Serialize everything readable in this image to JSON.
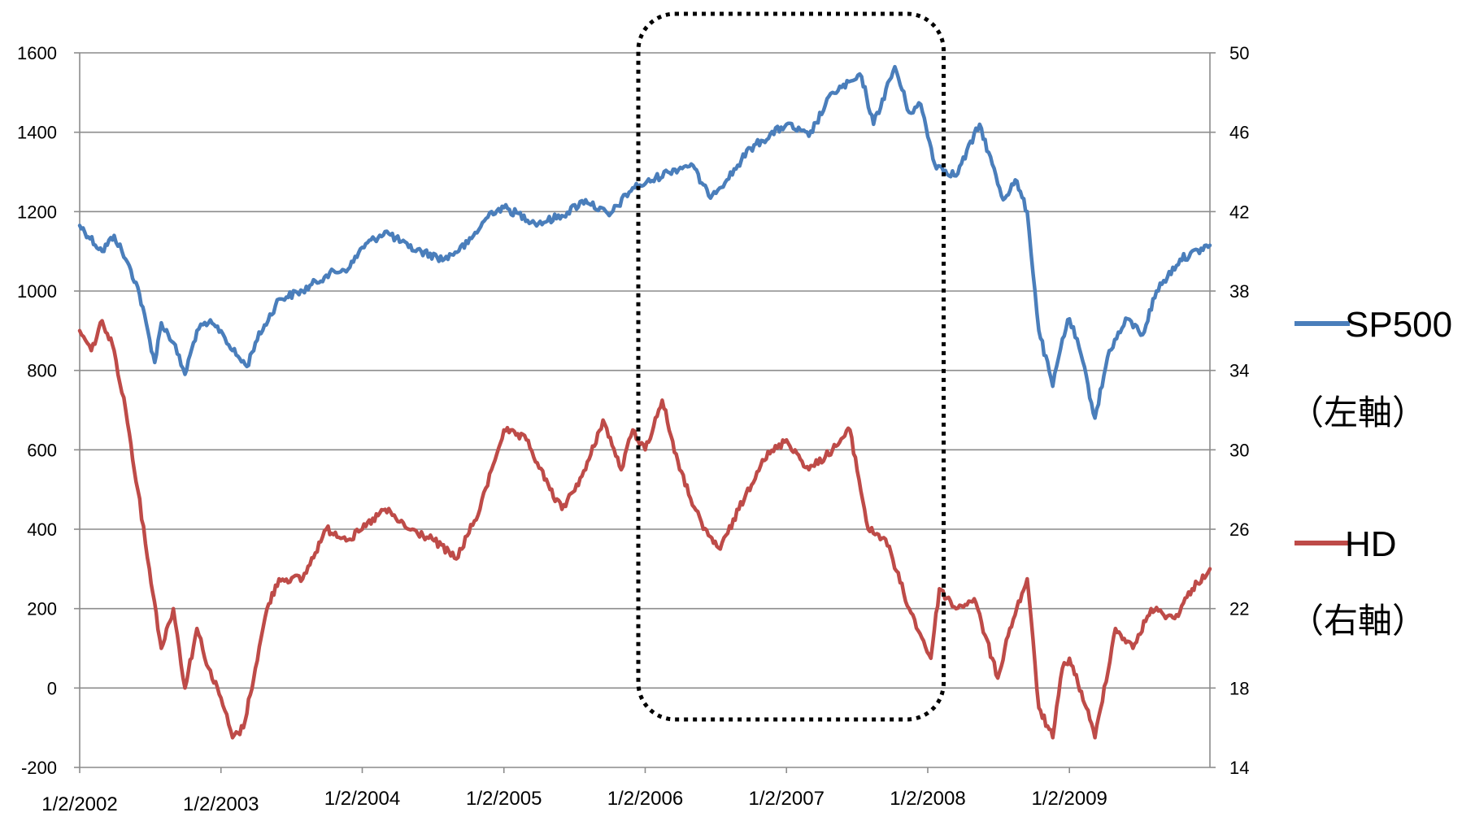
{
  "chart_data": {
    "type": "line",
    "left_axis": {
      "ylim": [
        -200,
        1600
      ],
      "ticks": [
        "1600",
        "1400",
        "1200",
        "1000",
        "800",
        "600",
        "400",
        "200",
        "0",
        "-200"
      ]
    },
    "right_axis": {
      "ylim": [
        14,
        50
      ],
      "ticks": [
        "50",
        "46",
        "42",
        "38",
        "34",
        "30",
        "26",
        "22",
        "18",
        "14"
      ]
    },
    "x_ticks": [
      "1/2/2002",
      "1/2/2003",
      "1/2/2004",
      "1/2/2005",
      "1/2/2006",
      "1/2/2007",
      "1/2/2008",
      "1/2/2009"
    ],
    "grid": "horizontal",
    "legend_position": "right",
    "highlight_box": {
      "from": "2006-01",
      "to": "2008-01",
      "style": "dotted"
    },
    "series": [
      {
        "name": "SP500",
        "axis_label": "（左軸）",
        "axis": "left",
        "color": "#4a7ebb",
        "points": [
          [
            "2002-01-02",
            1165
          ],
          [
            "2002-03-01",
            1100
          ],
          [
            "2002-04-01",
            1140
          ],
          [
            "2002-05-01",
            1080
          ],
          [
            "2002-06-01",
            1010
          ],
          [
            "2002-07-15",
            820
          ],
          [
            "2002-08-01",
            920
          ],
          [
            "2002-09-01",
            870
          ],
          [
            "2002-10-01",
            790
          ],
          [
            "2002-11-01",
            900
          ],
          [
            "2002-12-01",
            920
          ],
          [
            "2003-01-02",
            900
          ],
          [
            "2003-02-01",
            850
          ],
          [
            "2003-03-10",
            810
          ],
          [
            "2003-04-01",
            870
          ],
          [
            "2003-06-01",
            980
          ],
          [
            "2003-08-01",
            1000
          ],
          [
            "2003-10-01",
            1040
          ],
          [
            "2003-12-01",
            1060
          ],
          [
            "2004-01-02",
            1110
          ],
          [
            "2004-03-01",
            1150
          ],
          [
            "2004-05-01",
            1110
          ],
          [
            "2004-08-01",
            1080
          ],
          [
            "2004-10-01",
            1120
          ],
          [
            "2004-12-01",
            1200
          ],
          [
            "2005-01-02",
            1210
          ],
          [
            "2005-04-01",
            1170
          ],
          [
            "2005-06-01",
            1190
          ],
          [
            "2005-08-01",
            1230
          ],
          [
            "2005-10-01",
            1190
          ],
          [
            "2005-12-01",
            1260
          ],
          [
            "2006-01-02",
            1270
          ],
          [
            "2006-03-01",
            1300
          ],
          [
            "2006-05-01",
            1320
          ],
          [
            "2006-06-15",
            1240
          ],
          [
            "2006-08-01",
            1280
          ],
          [
            "2006-10-01",
            1360
          ],
          [
            "2007-01-02",
            1420
          ],
          [
            "2007-03-01",
            1390
          ],
          [
            "2007-05-01",
            1500
          ],
          [
            "2007-07-15",
            1540
          ],
          [
            "2007-08-15",
            1420
          ],
          [
            "2007-10-09",
            1565
          ],
          [
            "2007-11-15",
            1450
          ],
          [
            "2007-12-15",
            1470
          ],
          [
            "2008-01-20",
            1320
          ],
          [
            "2008-03-15",
            1290
          ],
          [
            "2008-05-15",
            1420
          ],
          [
            "2008-07-15",
            1230
          ],
          [
            "2008-08-15",
            1280
          ],
          [
            "2008-09-15",
            1200
          ],
          [
            "2008-10-15",
            900
          ],
          [
            "2008-11-20",
            760
          ],
          [
            "2008-12-15",
            880
          ],
          [
            "2009-01-02",
            930
          ],
          [
            "2009-02-01",
            840
          ],
          [
            "2009-03-09",
            680
          ],
          [
            "2009-04-15",
            850
          ],
          [
            "2009-06-01",
            930
          ],
          [
            "2009-07-10",
            890
          ],
          [
            "2009-08-15",
            1000
          ],
          [
            "2009-10-15",
            1080
          ],
          [
            "2009-12-31",
            1115
          ]
        ]
      },
      {
        "name": "HD",
        "axis_label": "（右軸）",
        "axis": "right",
        "color": "#be4b48",
        "points": [
          [
            "2002-01-02",
            36
          ],
          [
            "2002-02-01",
            35
          ],
          [
            "2002-03-01",
            36.5
          ],
          [
            "2002-04-01",
            35
          ],
          [
            "2002-05-01",
            32
          ],
          [
            "2002-06-01",
            28
          ],
          [
            "2002-07-01",
            24
          ],
          [
            "2002-08-01",
            20
          ],
          [
            "2002-09-01",
            22
          ],
          [
            "2002-10-01",
            18
          ],
          [
            "2002-11-01",
            21
          ],
          [
            "2002-12-01",
            19
          ],
          [
            "2003-01-02",
            17.5
          ],
          [
            "2003-02-01",
            15.5
          ],
          [
            "2003-03-01",
            16
          ],
          [
            "2003-04-01",
            19
          ],
          [
            "2003-05-01",
            22
          ],
          [
            "2003-06-01",
            23.5
          ],
          [
            "2003-08-01",
            23.5
          ],
          [
            "2003-10-01",
            26
          ],
          [
            "2003-12-01",
            25.5
          ],
          [
            "2004-01-02",
            26
          ],
          [
            "2004-03-01",
            27
          ],
          [
            "2004-05-01",
            26
          ],
          [
            "2004-07-01",
            25.5
          ],
          [
            "2004-09-01",
            24.5
          ],
          [
            "2004-11-01",
            27
          ],
          [
            "2004-12-01",
            29
          ],
          [
            "2005-01-02",
            31
          ],
          [
            "2005-03-01",
            30.5
          ],
          [
            "2005-05-01",
            28
          ],
          [
            "2005-06-01",
            27
          ],
          [
            "2005-08-01",
            29
          ],
          [
            "2005-09-15",
            31.5
          ],
          [
            "2005-11-01",
            29
          ],
          [
            "2005-12-01",
            31
          ],
          [
            "2006-01-02",
            30
          ],
          [
            "2006-02-15",
            32.5
          ],
          [
            "2006-04-01",
            29
          ],
          [
            "2006-06-01",
            26
          ],
          [
            "2006-07-15",
            25
          ],
          [
            "2006-09-01",
            27
          ],
          [
            "2006-11-01",
            29.5
          ],
          [
            "2007-01-02",
            30.5
          ],
          [
            "2007-03-01",
            29
          ],
          [
            "2007-05-01",
            30
          ],
          [
            "2007-06-15",
            31
          ],
          [
            "2007-08-01",
            26
          ],
          [
            "2007-09-15",
            25.5
          ],
          [
            "2007-11-15",
            22
          ],
          [
            "2008-01-10",
            19.5
          ],
          [
            "2008-02-01",
            23
          ],
          [
            "2008-03-15",
            22
          ],
          [
            "2008-05-01",
            22.5
          ],
          [
            "2008-07-01",
            18.5
          ],
          [
            "2008-08-01",
            21
          ],
          [
            "2008-09-15",
            23.5
          ],
          [
            "2008-10-15",
            17
          ],
          [
            "2008-11-20",
            15.5
          ],
          [
            "2008-12-15",
            19
          ],
          [
            "2009-01-02",
            19.5
          ],
          [
            "2009-02-15",
            17
          ],
          [
            "2009-03-09",
            15.5
          ],
          [
            "2009-05-01",
            21
          ],
          [
            "2009-06-15",
            20
          ],
          [
            "2009-08-01",
            22
          ],
          [
            "2009-10-01",
            21.5
          ],
          [
            "2009-11-15",
            23
          ],
          [
            "2009-12-31",
            24
          ]
        ]
      }
    ]
  }
}
